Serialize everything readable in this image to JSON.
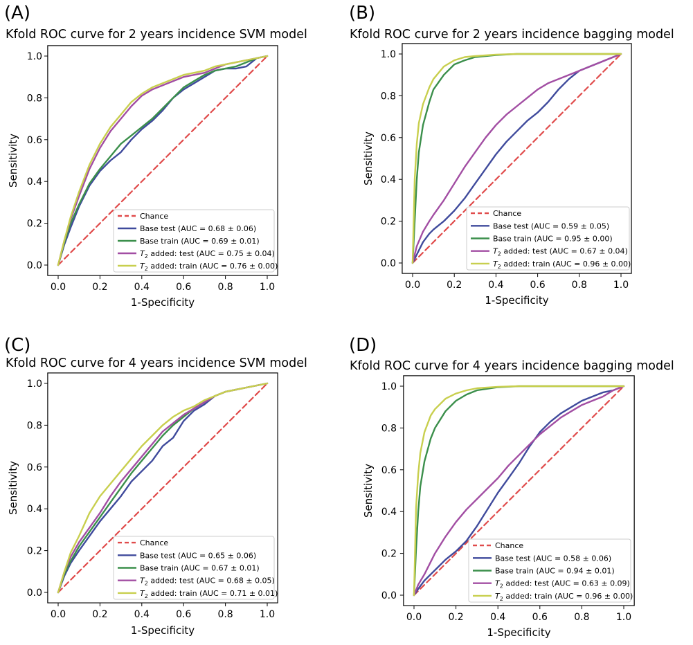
{
  "colors": {
    "chance": "#e04b4b",
    "base_test": "#3f4a9c",
    "base_train": "#3b8f4b",
    "t2_test": "#a24ea3",
    "t2_train": "#c8cf4e",
    "axis": "#000000",
    "background": "#ffffff"
  },
  "chart_data": [
    {
      "type": "line",
      "panel_label": "(A)",
      "title": "Kfold ROC curve for 2 years incidence SVM model",
      "xlabel": "1-Specificity",
      "ylabel": "Sensitivity",
      "xlim": [
        0,
        1
      ],
      "ylim": [
        0,
        1
      ],
      "x_ticks": [
        "0.0",
        "0.2",
        "0.4",
        "0.6",
        "0.8",
        "1.0"
      ],
      "y_ticks": [
        "0.0",
        "0.2",
        "0.4",
        "0.6",
        "0.8",
        "1.0"
      ],
      "grid": false,
      "legend_position": "lower-right",
      "series": [
        {
          "key": "chance",
          "name": "Chance",
          "style": "dashed",
          "x": [
            0,
            1
          ],
          "y": [
            0,
            1
          ]
        },
        {
          "key": "base_test",
          "name": "Base test (AUC = 0.68 ± 0.06)",
          "style": "solid",
          "x": [
            0,
            0.03,
            0.06,
            0.1,
            0.15,
            0.2,
            0.25,
            0.3,
            0.35,
            0.4,
            0.45,
            0.5,
            0.55,
            0.6,
            0.65,
            0.7,
            0.75,
            0.8,
            0.85,
            0.9,
            0.95,
            1.0
          ],
          "y": [
            0,
            0.1,
            0.18,
            0.28,
            0.38,
            0.45,
            0.5,
            0.54,
            0.6,
            0.65,
            0.69,
            0.74,
            0.8,
            0.84,
            0.87,
            0.9,
            0.93,
            0.94,
            0.94,
            0.95,
            0.99,
            1.0
          ]
        },
        {
          "key": "base_train",
          "name": "Base train (AUC = 0.69 ± 0.01)",
          "style": "solid",
          "x": [
            0,
            0.03,
            0.06,
            0.1,
            0.15,
            0.2,
            0.25,
            0.3,
            0.35,
            0.4,
            0.45,
            0.5,
            0.55,
            0.6,
            0.65,
            0.7,
            0.75,
            0.8,
            0.85,
            0.9,
            0.95,
            1.0
          ],
          "y": [
            0,
            0.11,
            0.2,
            0.29,
            0.39,
            0.46,
            0.52,
            0.58,
            0.62,
            0.66,
            0.7,
            0.75,
            0.8,
            0.85,
            0.88,
            0.91,
            0.93,
            0.94,
            0.95,
            0.97,
            0.99,
            1.0
          ]
        },
        {
          "key": "t2_test",
          "name": "added: test (AUC = 0.75 ± 0.04)",
          "name_prefix": "T",
          "name_sub": "2",
          "style": "solid",
          "x": [
            0,
            0.03,
            0.06,
            0.1,
            0.15,
            0.2,
            0.25,
            0.3,
            0.35,
            0.4,
            0.45,
            0.5,
            0.55,
            0.6,
            0.65,
            0.7,
            0.75,
            0.8,
            0.85,
            0.9,
            0.95,
            1.0
          ],
          "y": [
            0,
            0.12,
            0.22,
            0.33,
            0.46,
            0.56,
            0.64,
            0.7,
            0.76,
            0.81,
            0.84,
            0.86,
            0.88,
            0.9,
            0.91,
            0.92,
            0.94,
            0.96,
            0.97,
            0.98,
            0.99,
            1.0
          ]
        },
        {
          "key": "t2_train",
          "name": "added: train (AUC = 0.76 ± 0.00)",
          "name_prefix": "T",
          "name_sub": "2",
          "style": "solid",
          "x": [
            0,
            0.03,
            0.06,
            0.1,
            0.15,
            0.2,
            0.25,
            0.3,
            0.35,
            0.4,
            0.45,
            0.5,
            0.55,
            0.6,
            0.65,
            0.7,
            0.75,
            0.8,
            0.85,
            0.9,
            0.95,
            1.0
          ],
          "y": [
            0,
            0.12,
            0.23,
            0.35,
            0.48,
            0.58,
            0.66,
            0.72,
            0.78,
            0.82,
            0.85,
            0.87,
            0.89,
            0.91,
            0.92,
            0.93,
            0.95,
            0.96,
            0.97,
            0.98,
            0.99,
            1.0
          ]
        }
      ]
    },
    {
      "type": "line",
      "panel_label": "(B)",
      "title": "Kfold ROC curve for 2 years incidence bagging model",
      "xlabel": "1-Specificity",
      "ylabel": "Sensitivity",
      "xlim": [
        0,
        1
      ],
      "ylim": [
        0,
        1
      ],
      "x_ticks": [
        "0.0",
        "0.2",
        "0.4",
        "0.6",
        "0.8",
        "1.0"
      ],
      "y_ticks": [
        "0.0",
        "0.2",
        "0.4",
        "0.6",
        "0.8",
        "1.0"
      ],
      "grid": false,
      "legend_position": "lower-right",
      "series": [
        {
          "key": "chance",
          "name": "Chance",
          "style": "dashed",
          "x": [
            0,
            1
          ],
          "y": [
            0,
            1
          ]
        },
        {
          "key": "base_test",
          "name": "Base test (AUC = 0.59 ± 0.05)",
          "style": "solid",
          "x": [
            0,
            0.02,
            0.05,
            0.08,
            0.1,
            0.15,
            0.2,
            0.25,
            0.3,
            0.35,
            0.4,
            0.45,
            0.5,
            0.55,
            0.6,
            0.65,
            0.7,
            0.75,
            0.8,
            0.85,
            0.9,
            0.95,
            1.0
          ],
          "y": [
            0,
            0.04,
            0.1,
            0.14,
            0.16,
            0.2,
            0.25,
            0.31,
            0.38,
            0.45,
            0.52,
            0.58,
            0.63,
            0.68,
            0.72,
            0.77,
            0.83,
            0.88,
            0.92,
            0.94,
            0.96,
            0.98,
            1.0
          ]
        },
        {
          "key": "base_train",
          "name": "Base train (AUC = 0.95 ± 0.00)",
          "style": "solid",
          "x": [
            0,
            0.01,
            0.02,
            0.03,
            0.05,
            0.08,
            0.1,
            0.15,
            0.2,
            0.25,
            0.3,
            0.4,
            0.5,
            0.6,
            0.7,
            0.8,
            0.9,
            1.0
          ],
          "y": [
            0,
            0.2,
            0.4,
            0.53,
            0.66,
            0.77,
            0.83,
            0.9,
            0.95,
            0.97,
            0.985,
            0.995,
            1.0,
            1.0,
            1.0,
            1.0,
            1.0,
            1.0
          ]
        },
        {
          "key": "t2_test",
          "name": "added: test (AUC = 0.67 ± 0.04)",
          "name_prefix": "T",
          "name_sub": "2",
          "style": "solid",
          "x": [
            0,
            0.02,
            0.05,
            0.08,
            0.1,
            0.15,
            0.2,
            0.25,
            0.3,
            0.35,
            0.4,
            0.45,
            0.5,
            0.55,
            0.6,
            0.65,
            0.7,
            0.75,
            0.8,
            0.85,
            0.9,
            0.95,
            1.0
          ],
          "y": [
            0,
            0.08,
            0.15,
            0.2,
            0.23,
            0.3,
            0.38,
            0.46,
            0.53,
            0.6,
            0.66,
            0.71,
            0.75,
            0.79,
            0.83,
            0.86,
            0.88,
            0.9,
            0.92,
            0.94,
            0.96,
            0.98,
            1.0
          ]
        },
        {
          "key": "t2_train",
          "name": "added: train (AUC = 0.96 ± 0.00)",
          "name_prefix": "T",
          "name_sub": "2",
          "style": "solid",
          "x": [
            0,
            0.01,
            0.02,
            0.03,
            0.05,
            0.08,
            0.1,
            0.15,
            0.2,
            0.25,
            0.3,
            0.4,
            0.5,
            0.6,
            0.7,
            0.8,
            0.9,
            1.0
          ],
          "y": [
            0,
            0.4,
            0.57,
            0.67,
            0.76,
            0.84,
            0.88,
            0.94,
            0.97,
            0.985,
            0.99,
            0.997,
            1.0,
            1.0,
            1.0,
            1.0,
            1.0,
            1.0
          ]
        }
      ]
    },
    {
      "type": "line",
      "panel_label": "(C)",
      "title": "Kfold ROC curve for 4 years incidence SVM model",
      "xlabel": "1-Specificity",
      "ylabel": "Sensitivity",
      "xlim": [
        0,
        1
      ],
      "ylim": [
        0,
        1
      ],
      "x_ticks": [
        "0.0",
        "0.2",
        "0.4",
        "0.6",
        "0.8",
        "1.0"
      ],
      "y_ticks": [
        "0.0",
        "0.2",
        "0.4",
        "0.6",
        "0.8",
        "1.0"
      ],
      "grid": false,
      "legend_position": "lower-right",
      "series": [
        {
          "key": "chance",
          "name": "Chance",
          "style": "dashed",
          "x": [
            0,
            1
          ],
          "y": [
            0,
            1
          ]
        },
        {
          "key": "base_test",
          "name": "Base test (AUC = 0.65 ± 0.06)",
          "style": "solid",
          "x": [
            0,
            0.03,
            0.06,
            0.1,
            0.15,
            0.2,
            0.25,
            0.3,
            0.35,
            0.4,
            0.45,
            0.5,
            0.55,
            0.6,
            0.65,
            0.7,
            0.75,
            0.8,
            0.85,
            0.9,
            0.95,
            1.0
          ],
          "y": [
            0,
            0.08,
            0.14,
            0.2,
            0.27,
            0.34,
            0.4,
            0.46,
            0.53,
            0.58,
            0.63,
            0.7,
            0.74,
            0.82,
            0.87,
            0.9,
            0.94,
            0.96,
            0.97,
            0.98,
            0.99,
            1.0
          ]
        },
        {
          "key": "base_train",
          "name": "Base train (AUC = 0.67 ± 0.01)",
          "style": "solid",
          "x": [
            0,
            0.03,
            0.06,
            0.1,
            0.15,
            0.2,
            0.25,
            0.3,
            0.35,
            0.4,
            0.45,
            0.5,
            0.55,
            0.6,
            0.65,
            0.7,
            0.75,
            0.8,
            0.85,
            0.9,
            0.95,
            1.0
          ],
          "y": [
            0,
            0.09,
            0.15,
            0.22,
            0.29,
            0.36,
            0.43,
            0.5,
            0.57,
            0.63,
            0.69,
            0.75,
            0.8,
            0.84,
            0.88,
            0.91,
            0.94,
            0.96,
            0.97,
            0.98,
            0.99,
            1.0
          ]
        },
        {
          "key": "t2_test",
          "name": "added: test (AUC = 0.68 ± 0.05)",
          "name_prefix": "T",
          "name_sub": "2",
          "style": "solid",
          "x": [
            0,
            0.03,
            0.06,
            0.1,
            0.15,
            0.2,
            0.25,
            0.3,
            0.35,
            0.4,
            0.45,
            0.5,
            0.55,
            0.6,
            0.65,
            0.7,
            0.75,
            0.8,
            0.85,
            0.9,
            0.95,
            1.0
          ],
          "y": [
            0,
            0.1,
            0.17,
            0.24,
            0.31,
            0.38,
            0.46,
            0.53,
            0.59,
            0.65,
            0.71,
            0.77,
            0.81,
            0.85,
            0.88,
            0.91,
            0.94,
            0.96,
            0.97,
            0.98,
            0.99,
            1.0
          ]
        },
        {
          "key": "t2_train",
          "name": "added: train (AUC = 0.71 ± 0.01)",
          "name_prefix": "T",
          "name_sub": "2",
          "style": "solid",
          "x": [
            0,
            0.03,
            0.06,
            0.1,
            0.15,
            0.2,
            0.25,
            0.3,
            0.35,
            0.4,
            0.45,
            0.5,
            0.55,
            0.6,
            0.65,
            0.7,
            0.75,
            0.8,
            0.85,
            0.9,
            0.95,
            1.0
          ],
          "y": [
            0,
            0.1,
            0.19,
            0.27,
            0.38,
            0.46,
            0.52,
            0.58,
            0.64,
            0.7,
            0.75,
            0.8,
            0.84,
            0.87,
            0.89,
            0.92,
            0.94,
            0.96,
            0.97,
            0.98,
            0.99,
            1.0
          ]
        }
      ]
    },
    {
      "type": "line",
      "panel_label": "(D)",
      "title": "Kfold ROC curve for 4 years incidence bagging model",
      "xlabel": "1-Specificity",
      "ylabel": "Sensitivity",
      "xlim": [
        0,
        1
      ],
      "ylim": [
        0,
        1
      ],
      "x_ticks": [
        "0.0",
        "0.2",
        "0.4",
        "0.6",
        "0.8",
        "1.0"
      ],
      "y_ticks": [
        "0.0",
        "0.2",
        "0.4",
        "0.6",
        "0.8",
        "1.0"
      ],
      "grid": false,
      "legend_position": "lower-right",
      "series": [
        {
          "key": "chance",
          "name": "Chance",
          "style": "dashed",
          "x": [
            0,
            1
          ],
          "y": [
            0,
            1
          ]
        },
        {
          "key": "base_test",
          "name": "Base test (AUC = 0.58 ± 0.06)",
          "style": "solid",
          "x": [
            0,
            0.02,
            0.05,
            0.08,
            0.1,
            0.15,
            0.2,
            0.25,
            0.3,
            0.35,
            0.4,
            0.45,
            0.5,
            0.55,
            0.6,
            0.65,
            0.7,
            0.75,
            0.8,
            0.85,
            0.9,
            0.95,
            1.0
          ],
          "y": [
            0,
            0.03,
            0.07,
            0.1,
            0.12,
            0.17,
            0.21,
            0.26,
            0.33,
            0.41,
            0.49,
            0.56,
            0.63,
            0.71,
            0.78,
            0.83,
            0.87,
            0.9,
            0.93,
            0.95,
            0.97,
            0.98,
            1.0
          ]
        },
        {
          "key": "base_train",
          "name": "Base train (AUC = 0.94 ± 0.01)",
          "style": "solid",
          "x": [
            0,
            0.01,
            0.02,
            0.03,
            0.05,
            0.08,
            0.1,
            0.15,
            0.2,
            0.25,
            0.3,
            0.4,
            0.5,
            0.6,
            0.7,
            0.8,
            0.9,
            1.0
          ],
          "y": [
            0,
            0.22,
            0.4,
            0.52,
            0.64,
            0.75,
            0.8,
            0.88,
            0.93,
            0.96,
            0.98,
            0.995,
            1.0,
            1.0,
            1.0,
            1.0,
            1.0,
            1.0
          ]
        },
        {
          "key": "t2_test",
          "name": "added: test (AUC = 0.63 ± 0.09)",
          "name_prefix": "T",
          "name_sub": "2",
          "style": "solid",
          "x": [
            0,
            0.02,
            0.05,
            0.08,
            0.1,
            0.15,
            0.2,
            0.25,
            0.3,
            0.35,
            0.4,
            0.45,
            0.5,
            0.55,
            0.6,
            0.65,
            0.7,
            0.75,
            0.8,
            0.85,
            0.9,
            0.95,
            1.0
          ],
          "y": [
            0,
            0.05,
            0.1,
            0.16,
            0.2,
            0.28,
            0.35,
            0.41,
            0.46,
            0.51,
            0.56,
            0.62,
            0.67,
            0.72,
            0.77,
            0.81,
            0.85,
            0.88,
            0.91,
            0.93,
            0.95,
            0.98,
            1.0
          ]
        },
        {
          "key": "t2_train",
          "name": "added: train (AUC = 0.96 ± 0.00)",
          "name_prefix": "T",
          "name_sub": "2",
          "style": "solid",
          "x": [
            0,
            0.01,
            0.02,
            0.03,
            0.05,
            0.08,
            0.1,
            0.15,
            0.2,
            0.25,
            0.3,
            0.4,
            0.5,
            0.6,
            0.7,
            0.8,
            0.9,
            1.0
          ],
          "y": [
            0,
            0.42,
            0.58,
            0.68,
            0.78,
            0.86,
            0.89,
            0.94,
            0.965,
            0.98,
            0.99,
            0.997,
            1.0,
            1.0,
            1.0,
            1.0,
            1.0,
            1.0
          ]
        }
      ]
    }
  ]
}
